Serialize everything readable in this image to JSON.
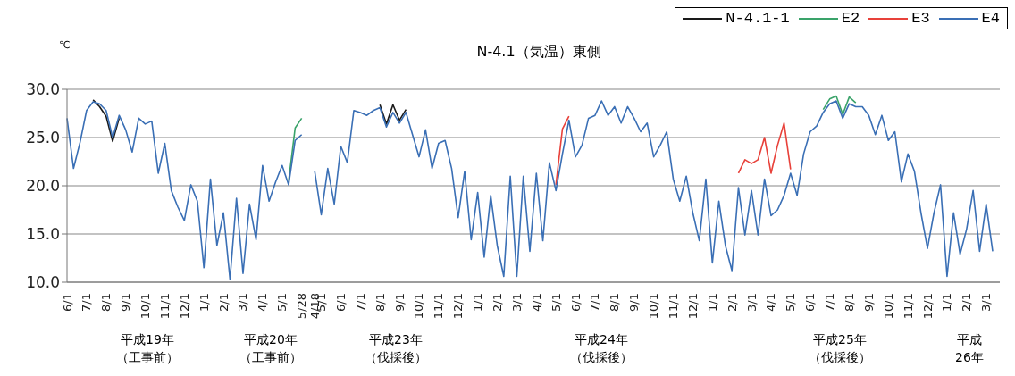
{
  "chart_data": {
    "type": "line",
    "title": "N-4.1（気温）東側",
    "ylabel": "℃",
    "categories": [
      "6/1",
      null,
      null,
      "7/1",
      null,
      null,
      "8/1",
      null,
      null,
      "9/1",
      null,
      null,
      "10/1",
      null,
      null,
      "11/1",
      null,
      null,
      "12/1",
      null,
      null,
      "1/1",
      null,
      null,
      "2/1",
      null,
      null,
      "3/1",
      null,
      null,
      "4/1",
      null,
      null,
      "5/1",
      null,
      null,
      "5/28",
      null,
      "4/18",
      "5/1",
      null,
      null,
      "6/1",
      null,
      null,
      "7/1",
      null,
      null,
      "8/1",
      null,
      null,
      "9/1",
      null,
      null,
      "10/1",
      null,
      null,
      "11/1",
      null,
      null,
      "12/1",
      null,
      null,
      "1/1",
      null,
      null,
      "2/1",
      null,
      null,
      "3/1",
      null,
      null,
      "4/1",
      null,
      null,
      "5/1",
      null,
      null,
      "6/1",
      null,
      null,
      "7/1",
      null,
      null,
      "8/1",
      null,
      null,
      "9/1",
      null,
      null,
      "10/1",
      null,
      null,
      "11/1",
      null,
      null,
      "12/1",
      null,
      null,
      "1/1",
      null,
      null,
      "2/1",
      null,
      null,
      "3/1",
      null,
      null,
      "4/1",
      null,
      null,
      "5/1",
      null,
      null,
      "6/1",
      null,
      null,
      "7/1",
      null,
      null,
      "8/1",
      null,
      null,
      "9/1",
      null,
      null,
      "10/1",
      null,
      null,
      "11/1",
      null,
      null,
      "12/1",
      null,
      null,
      "1/1",
      null,
      null,
      "2/1",
      null,
      null,
      "3/1",
      null
    ],
    "series": [
      {
        "name": "N-4.1-1",
        "color": "#1a1a1a",
        "values": [
          null,
          null,
          null,
          null,
          28.9,
          28.2,
          27.2,
          24.6,
          27.0,
          null,
          null,
          null,
          null,
          null,
          null,
          null,
          null,
          null,
          null,
          null,
          null,
          null,
          null,
          null,
          null,
          null,
          null,
          null,
          null,
          null,
          null,
          null,
          null,
          null,
          null,
          null,
          null,
          null,
          null,
          null,
          null,
          null,
          null,
          null,
          null,
          null,
          null,
          null,
          28.4,
          26.4,
          28.4,
          26.8,
          27.9,
          null,
          null,
          null,
          null,
          null,
          null,
          null,
          null,
          null,
          null,
          null,
          null,
          null,
          null,
          null,
          null,
          null,
          null,
          null,
          null,
          null,
          null,
          null,
          null,
          null,
          null,
          null,
          null,
          null,
          null,
          null,
          null,
          null,
          null,
          null,
          null,
          null,
          null,
          null,
          null,
          null,
          null,
          null,
          null,
          null,
          null,
          null,
          null,
          null,
          null,
          null,
          null,
          null,
          null,
          null,
          null,
          null,
          null,
          null,
          null,
          null,
          null,
          null,
          null,
          null,
          null,
          null,
          null,
          null,
          null,
          null,
          null,
          null,
          null,
          null,
          null,
          null,
          null,
          null,
          null,
          null,
          null,
          null,
          null,
          null,
          null,
          null,
          null,
          null,
          null
        ]
      },
      {
        "name": "E2",
        "color": "#3aa36a",
        "values": [
          null,
          null,
          null,
          null,
          null,
          null,
          null,
          null,
          null,
          null,
          null,
          null,
          null,
          null,
          null,
          null,
          null,
          null,
          null,
          null,
          null,
          null,
          null,
          null,
          null,
          null,
          null,
          null,
          null,
          null,
          null,
          null,
          null,
          null,
          20.5,
          26,
          27,
          null,
          null,
          null,
          null,
          null,
          null,
          null,
          null,
          null,
          null,
          null,
          null,
          null,
          null,
          null,
          null,
          null,
          null,
          null,
          null,
          null,
          null,
          null,
          null,
          null,
          null,
          null,
          null,
          null,
          null,
          null,
          null,
          null,
          null,
          null,
          null,
          null,
          null,
          null,
          null,
          null,
          null,
          null,
          null,
          null,
          null,
          null,
          null,
          null,
          null,
          null,
          null,
          null,
          null,
          null,
          null,
          null,
          null,
          null,
          null,
          null,
          null,
          null,
          null,
          null,
          null,
          null,
          null,
          null,
          null,
          null,
          null,
          null,
          null,
          null,
          null,
          null,
          null,
          null,
          27.9,
          29,
          29.3,
          27.4,
          29.2,
          28.6,
          null,
          null,
          null,
          null,
          null,
          null,
          null,
          null,
          null,
          null,
          null,
          null,
          null,
          null,
          null,
          null,
          null,
          null,
          null,
          null,
          null
        ]
      },
      {
        "name": "E3",
        "color": "#e8413a",
        "values": [
          null,
          null,
          null,
          null,
          null,
          null,
          null,
          null,
          null,
          null,
          null,
          null,
          null,
          null,
          null,
          null,
          null,
          null,
          null,
          null,
          null,
          null,
          null,
          null,
          null,
          null,
          null,
          null,
          null,
          null,
          null,
          null,
          null,
          null,
          null,
          null,
          null,
          null,
          null,
          null,
          null,
          null,
          null,
          null,
          null,
          null,
          null,
          null,
          null,
          null,
          null,
          null,
          null,
          null,
          null,
          null,
          null,
          null,
          null,
          null,
          null,
          null,
          null,
          null,
          null,
          null,
          null,
          null,
          null,
          null,
          null,
          null,
          null,
          null,
          null,
          20.1,
          25.9,
          27.2,
          null,
          null,
          null,
          null,
          null,
          null,
          null,
          null,
          null,
          null,
          null,
          null,
          null,
          null,
          null,
          null,
          null,
          null,
          null,
          null,
          null,
          null,
          null,
          null,
          null,
          21.3,
          22.7,
          22.3,
          22.7,
          25,
          21.3,
          24.2,
          26.5,
          21.7,
          null,
          null,
          null,
          null,
          null,
          null,
          null,
          null,
          null,
          null,
          null,
          null,
          null,
          null,
          null,
          null,
          null,
          null,
          null,
          null,
          null,
          null,
          null,
          null,
          null,
          null,
          null,
          null,
          null,
          null,
          null
        ]
      },
      {
        "name": "E4",
        "color": "#3a6fb5",
        "values": [
          27,
          21.8,
          24.5,
          27.8,
          28.7,
          28.5,
          27.8,
          25,
          27.3,
          25.8,
          23.5,
          27,
          26.4,
          26.7,
          21.3,
          24.4,
          19.5,
          17.8,
          16.4,
          20.1,
          18.4,
          11.5,
          20.7,
          13.8,
          17.2,
          10.3,
          18.7,
          10.9,
          18.1,
          14.4,
          22.1,
          18.4,
          20.4,
          22.1,
          20.1,
          24.7,
          25.3,
          null,
          21.5,
          17,
          21.8,
          18.1,
          24.1,
          22.4,
          27.8,
          27.6,
          27.3,
          27.8,
          28.1,
          26.1,
          27.6,
          26.5,
          27.6,
          25.3,
          23,
          25.8,
          21.8,
          24.4,
          24.7,
          21.8,
          16.7,
          21.5,
          14.4,
          19.3,
          12.6,
          19,
          13.8,
          10.6,
          21,
          10.6,
          21,
          13.2,
          21.3,
          14.3,
          22.4,
          19.5,
          23.3,
          26.8,
          23,
          24.2,
          27,
          27.3,
          28.8,
          27.3,
          28.2,
          26.5,
          28.2,
          27,
          25.6,
          26.5,
          23,
          24.2,
          25.6,
          20.7,
          18.4,
          21,
          17.2,
          14.3,
          20.7,
          12,
          18.4,
          13.8,
          11.2,
          19.8,
          14.9,
          19.5,
          14.9,
          20.7,
          16.9,
          17.5,
          19,
          21.3,
          19,
          23.3,
          25.6,
          26.2,
          27.6,
          28.5,
          28.8,
          27,
          28.5,
          28.2,
          28.2,
          27.3,
          25.3,
          27.3,
          24.7,
          25.6,
          20.4,
          23.3,
          21.5,
          17.2,
          13.5,
          17.2,
          20.1,
          10.6,
          17.2,
          12.9,
          15.5,
          19.5,
          13.2,
          18.1,
          13.2
        ]
      }
    ],
    "ylim": [
      10,
      30
    ],
    "yticks": [
      {
        "value": 10,
        "label": "10.0"
      },
      {
        "value": 15,
        "label": "15.0"
      },
      {
        "value": 20,
        "label": "20.0"
      },
      {
        "value": 25,
        "label": "25.0"
      },
      {
        "value": 30,
        "label": "30.0"
      }
    ],
    "grid": "y",
    "legend": "top right",
    "annotations": [
      "平成19年（工事前）",
      "平成20年（工事前）",
      "平成23年（伐採後）",
      "平成24年（伐採後）",
      "平成25年（伐採後）",
      "平成26年"
    ]
  }
}
